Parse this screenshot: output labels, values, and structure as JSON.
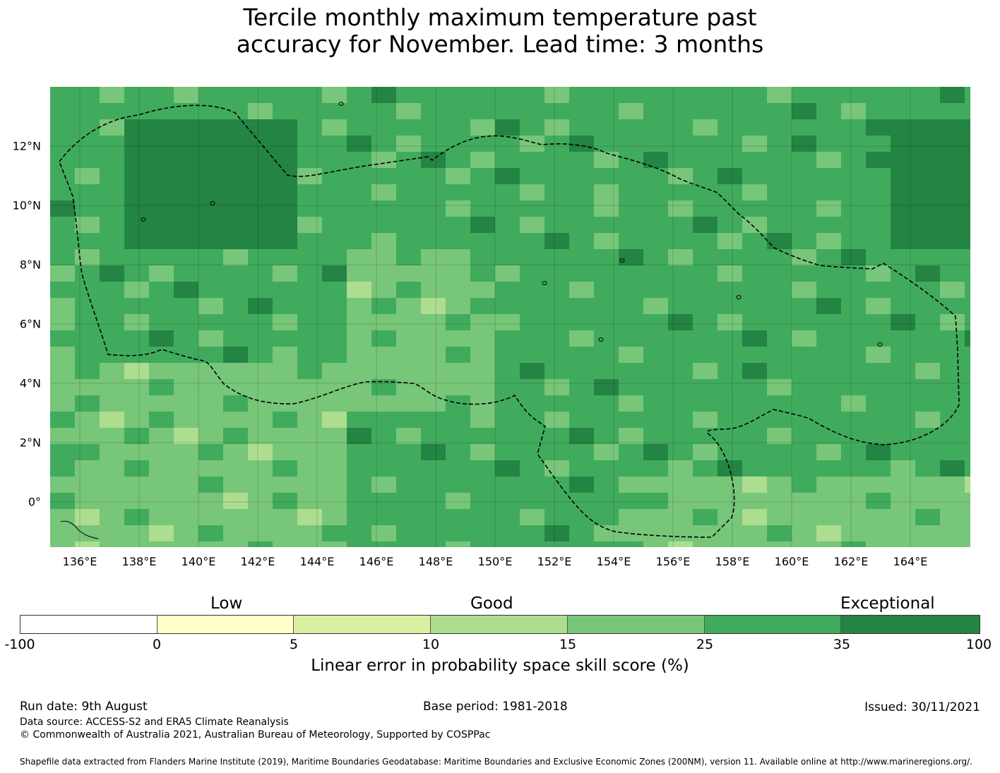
{
  "title": {
    "line1": "Tercile monthly maximum temperature past",
    "line2": "accuracy for November. Lead time: 3 months"
  },
  "map": {
    "lat_labels": [
      "12°N",
      "10°N",
      "8°N",
      "6°N",
      "4°N",
      "2°N",
      "0°"
    ],
    "lon_labels": [
      "136°E",
      "138°E",
      "140°E",
      "142°E",
      "144°E",
      "146°E",
      "148°E",
      "150°E",
      "152°E",
      "154°E",
      "156°E",
      "158°E",
      "160°E",
      "162°E",
      "164°E"
    ]
  },
  "colorbar": {
    "categories": [
      "Low",
      "Good",
      "Exceptional"
    ],
    "ticks": [
      "-100",
      "0",
      "5",
      "10",
      "15",
      "25",
      "35",
      "100"
    ],
    "colors": [
      "#ffffff",
      "#ffffcc",
      "#d9f0a3",
      "#addd8e",
      "#78c679",
      "#41ab5d",
      "#238443"
    ],
    "title": "Linear error in probability space skill score (%)"
  },
  "footer": {
    "run_date": "Run date: 9th August",
    "base_period": "Base period: 1981-2018",
    "issued": "Issued: 30/11/2021",
    "data_source": "Data source: ACCESS-S2 and ERA5 Climate Reanalysis",
    "copyright": "© Commonwealth of Australia 2021, Australian Bureau of Meteorology, Supported by COSPPac",
    "shapefile": "Shapefile data extracted from Flanders Marine Institute (2019), Maritime Boundaries Geodatabase: Maritime Boundaries and Exclusive Economic Zones (200NM), version 11. Available online at http://www.marineregions.org/."
  }
}
